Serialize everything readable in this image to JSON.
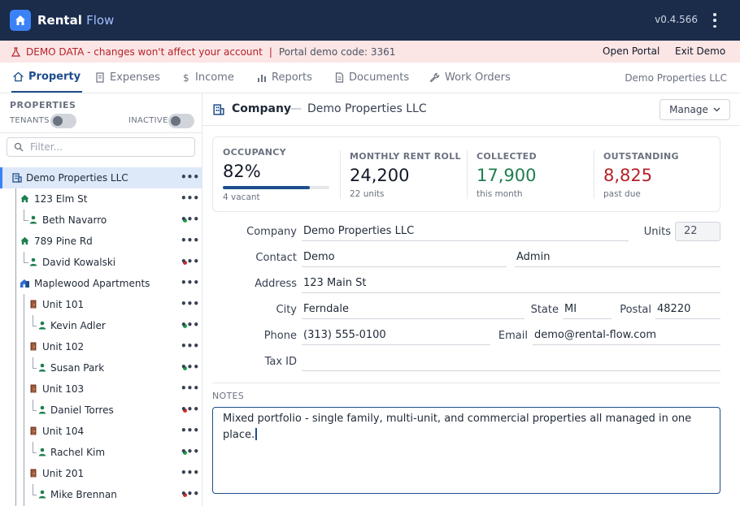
{
  "app": {
    "brand_part1": "Rental",
    "brand_part2": "Flow",
    "version": "v0.4.566"
  },
  "demo_bar": {
    "warning": "DEMO DATA - changes won't affect your account",
    "separator": "|",
    "portal_code": "Portal demo code: 3361",
    "open_portal": "Open Portal",
    "exit_demo": "Exit Demo"
  },
  "tabs": [
    {
      "label": "Property",
      "icon": "home-icon",
      "active": true
    },
    {
      "label": "Expenses",
      "icon": "receipt-icon"
    },
    {
      "label": "Income",
      "icon": "dollar-icon"
    },
    {
      "label": "Reports",
      "icon": "bar-chart-icon"
    },
    {
      "label": "Documents",
      "icon": "document-icon"
    },
    {
      "label": "Work Orders",
      "icon": "wrench-icon"
    }
  ],
  "tab_right_label": "Demo Properties LLC",
  "sidebar": {
    "title": "PROPERTIES",
    "tenants_toggle": "TENANTS",
    "inactive_toggle": "INACTIVE",
    "filter_placeholder": "Filter...",
    "more_label": "•••",
    "items": [
      {
        "label": "Demo Properties LLC",
        "type": "company",
        "selected": true
      },
      {
        "label": "123 Elm St",
        "type": "house"
      },
      {
        "label": "Beth Navarro",
        "type": "tenant",
        "status": "#16a34a"
      },
      {
        "label": "789 Pine Rd",
        "type": "house"
      },
      {
        "label": "David Kowalski",
        "type": "tenant",
        "status": "#dc2626"
      },
      {
        "label": "Maplewood Apartments",
        "type": "building"
      },
      {
        "label": "Unit 101",
        "type": "unit"
      },
      {
        "label": "Kevin Adler",
        "type": "tenant",
        "status": "#16a34a"
      },
      {
        "label": "Unit 102",
        "type": "unit"
      },
      {
        "label": "Susan Park",
        "type": "tenant",
        "status": "#16a34a"
      },
      {
        "label": "Unit 103",
        "type": "unit"
      },
      {
        "label": "Daniel Torres",
        "type": "tenant",
        "status": "#dc2626"
      },
      {
        "label": "Unit 104",
        "type": "unit"
      },
      {
        "label": "Rachel Kim",
        "type": "tenant",
        "status": "#16a34a"
      },
      {
        "label": "Unit 201",
        "type": "unit"
      },
      {
        "label": "Mike Brennan",
        "type": "tenant",
        "status": "#dc2626"
      }
    ]
  },
  "main": {
    "title": "Company",
    "dash": "—",
    "subtitle": "Demo Properties LLC",
    "manage_label": "Manage"
  },
  "stats": {
    "occupancy": {
      "label": "OCCUPANCY",
      "value": "82%",
      "sub": "4 vacant",
      "fill": 0.82
    },
    "rent_roll": {
      "label": "MONTHLY RENT ROLL",
      "value": "24,200",
      "sub": "22 units"
    },
    "collected": {
      "label": "COLLECTED",
      "value": "17,900",
      "sub": "this month",
      "color": "#1e7e4e"
    },
    "outstanding": {
      "label": "OUTSTANDING",
      "value": "8,825",
      "sub": "past due",
      "color": "#b4232a"
    }
  },
  "form": {
    "company_label": "Company",
    "company_value": "Demo Properties LLC",
    "units_label": "Units",
    "units_value": "22",
    "contact_label": "Contact",
    "contact_first": "Demo",
    "contact_last": "Admin",
    "address_label": "Address",
    "address_value": "123 Main St",
    "city_label": "City",
    "city_value": "Ferndale",
    "state_label": "State",
    "state_value": "MI",
    "postal_label": "Postal",
    "postal_value": "48220",
    "phone_label": "Phone",
    "phone_value": "(313) 555-0100",
    "email_label": "Email",
    "email_value": "demo@rental-flow.com",
    "taxid_label": "Tax ID",
    "taxid_value": ""
  },
  "notes": {
    "label": "NOTES",
    "value": "Mixed portfolio - single family, multi-unit, and commercial properties all managed in one place."
  }
}
